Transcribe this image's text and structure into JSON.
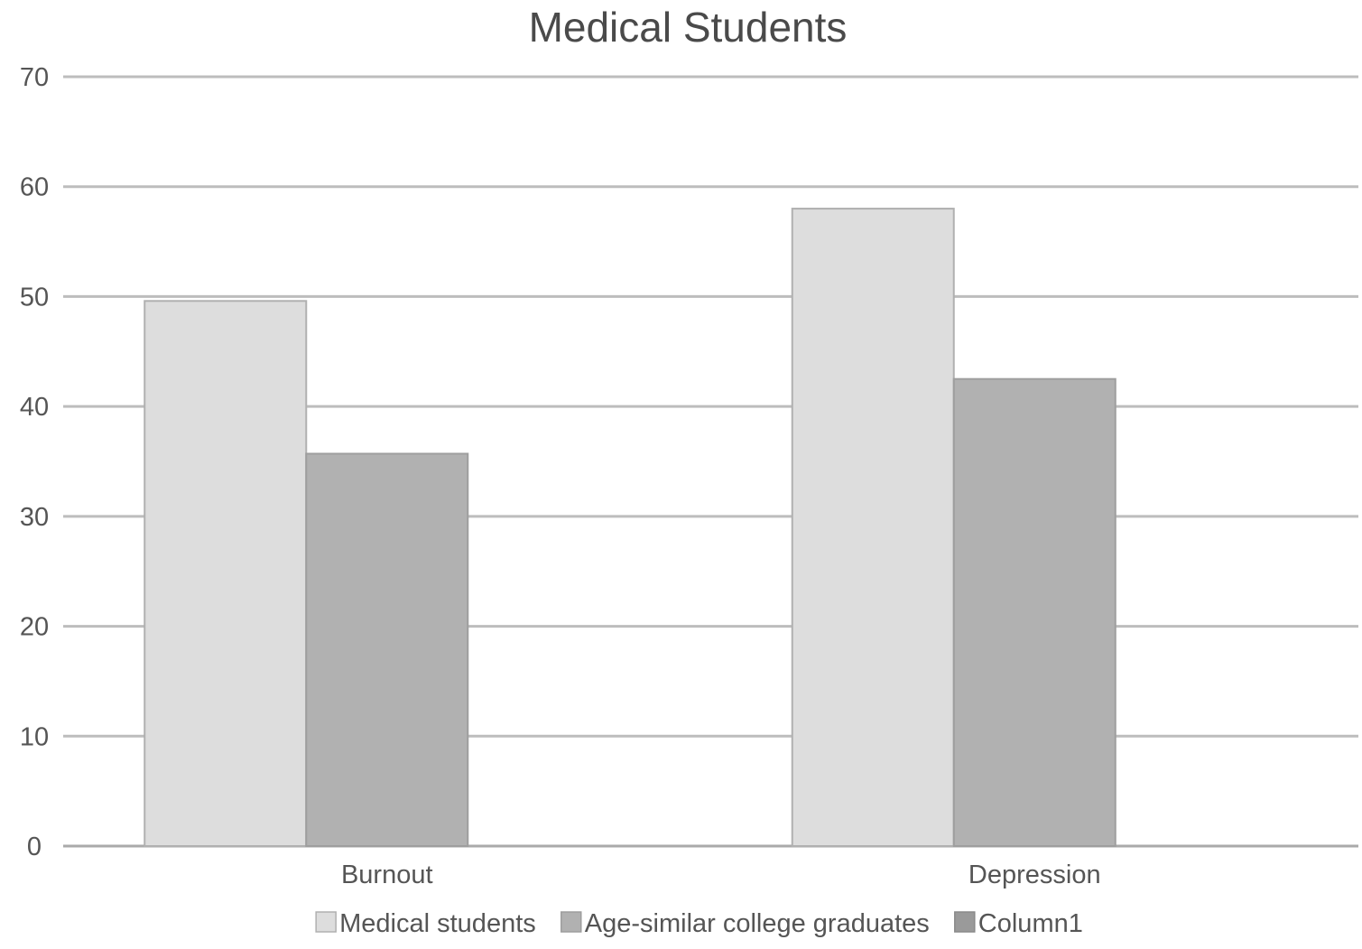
{
  "chart_data": {
    "type": "bar",
    "title": "Medical Students",
    "categories": [
      "Burnout",
      "Depression"
    ],
    "series": [
      {
        "name": "Medical students",
        "values": [
          49.6,
          58
        ],
        "color": "#dddddd",
        "stroke": "#b0b0b0"
      },
      {
        "name": "Age-similar college graduates",
        "values": [
          35.7,
          42.5
        ],
        "color": "#b1b1b1",
        "stroke": "#9e9e9e"
      },
      {
        "name": "Column1",
        "values": [
          null,
          null
        ],
        "color": "#9a9a9a",
        "stroke": "#8a8a8a"
      }
    ],
    "ylim": [
      0,
      70
    ],
    "yticks": [
      "0",
      "10",
      "20",
      "30",
      "40",
      "50",
      "60",
      "70"
    ],
    "grid": true,
    "legend_position": "bottom"
  }
}
